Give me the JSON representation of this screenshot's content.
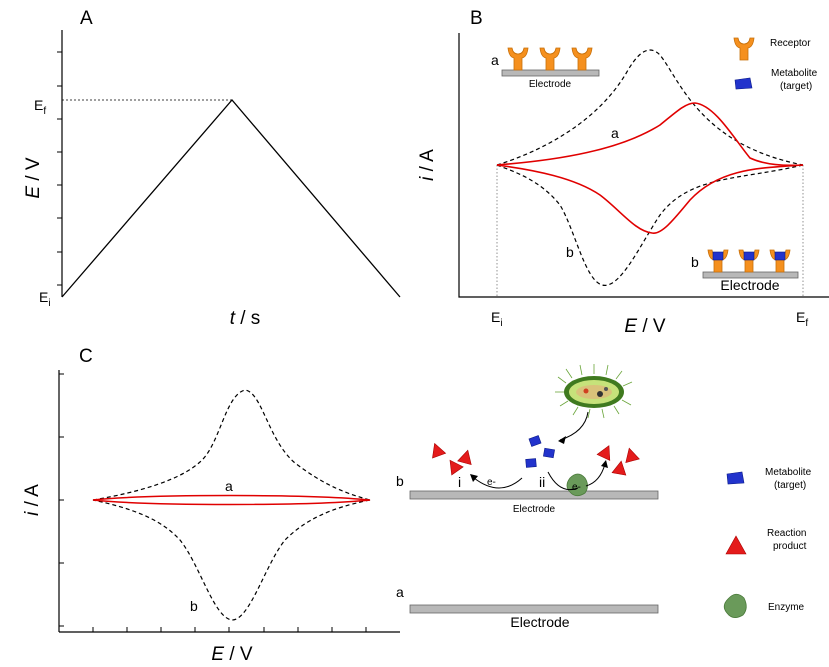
{
  "panels": {
    "A": {
      "label": "A",
      "ylabel_italic": "E",
      "ylabel_unit": " / V",
      "xlabel_italic": "t",
      "xlabel_unit": " / s",
      "e_f_base": "E",
      "e_f_sub": "f",
      "e_i_base": "E",
      "e_i_sub": "i"
    },
    "B": {
      "label": "B",
      "ylabel_italic": "i",
      "ylabel_unit": " / A",
      "xlabel_italic": "E",
      "xlabel_unit": " / V",
      "e_i_base": "E",
      "e_i_sub": "i",
      "e_f_base": "E",
      "e_f_sub": "f",
      "curve_a": "a",
      "curve_b": "b",
      "electrode_a_tag": "a",
      "electrode_b_tag": "b",
      "electrode_text": "Electrode",
      "legend": {
        "receptor": "Receptor",
        "metabolite_1": "Metabolite",
        "metabolite_2": "(target)"
      }
    },
    "C": {
      "label": "C",
      "ylabel_italic": "i",
      "ylabel_unit": " / A",
      "xlabel_italic": "E",
      "xlabel_unit": " / V",
      "curve_a": "a",
      "curve_b": "b",
      "electrode_a_tag": "a",
      "electrode_b_tag": "b",
      "electrode_text": "Electrode",
      "step_i": "i",
      "step_ii": "ii",
      "electron_1": "e-",
      "electron_2": "e-",
      "legend": {
        "metabolite_1": "Metabolite",
        "metabolite_2": "(target)",
        "product_1": "Reaction",
        "product_2": "product",
        "enzyme": "Enzyme"
      }
    }
  },
  "colors": {
    "red_curve": "#e00000",
    "receptor": "#f5901e",
    "metabolite": "#2233cc",
    "product": "#e41b1b",
    "enzyme": "#6a9a5a",
    "electrode": "#b8b8b8",
    "bacterium": "#7fbf3f"
  }
}
